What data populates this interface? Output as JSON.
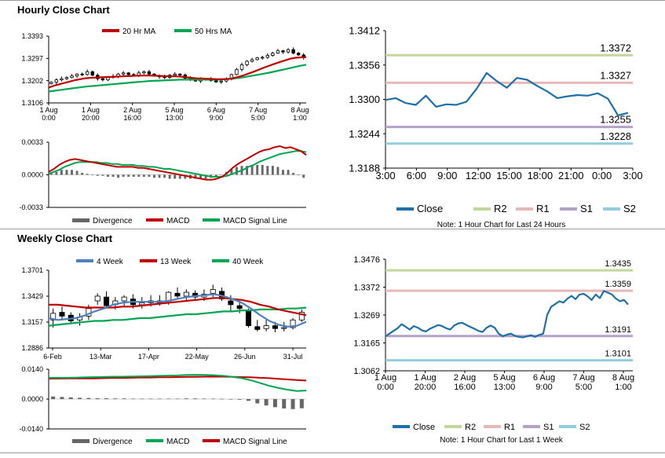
{
  "sections": {
    "hourly_title": "Hourly Close Chart",
    "weekly_title": "Weekly Close Chart"
  },
  "colors": {
    "ma20": "#c00000",
    "ma50": "#00a651",
    "divergence": "#666666",
    "macd": "#c00000",
    "signal": "#00a651",
    "close": "#1f6fa8",
    "r2": "#c3d69b",
    "r1": "#e6b9b8",
    "s1": "#b3a2c7",
    "s2": "#93cddd",
    "week4": "#4f81bd",
    "week13": "#c00000",
    "week40": "#00a651",
    "candle": "#000000",
    "axis": "#000000"
  },
  "chart_data": [
    {
      "id": "hourly_candles",
      "type": "candlestick",
      "legend": [
        "20 Hr MA",
        "50 Hrs MA"
      ],
      "y_ticks": [
        "1.3393",
        "1.3297",
        "1.3202",
        "1.3106"
      ],
      "ylim": [
        1.3106,
        1.3393
      ],
      "x_ticks": [
        [
          "1 Aug",
          "0:00"
        ],
        [
          "1 Aug",
          "20:00"
        ],
        [
          "2 Aug",
          "16:00"
        ],
        [
          "5 Aug",
          "13:00"
        ],
        [
          "6 Aug",
          "9:00"
        ],
        [
          "7 Aug",
          "5:00"
        ],
        [
          "8 Aug",
          "1:00"
        ]
      ],
      "close": [
        1.3195,
        1.3205,
        1.321,
        1.3215,
        1.3222,
        1.323,
        1.3228,
        1.324,
        1.3225,
        1.321,
        1.3205,
        1.3215,
        1.322,
        1.323,
        1.3235,
        1.3228,
        1.3225,
        1.3235,
        1.324,
        1.323,
        1.3222,
        1.3218,
        1.3215,
        1.3225,
        1.323,
        1.3226,
        1.3212,
        1.3205,
        1.32,
        1.3208,
        1.321,
        1.3202,
        1.3196,
        1.32,
        1.3208,
        1.3228,
        1.325,
        1.327,
        1.3285,
        1.3292,
        1.33,
        1.3302,
        1.331,
        1.332,
        1.333,
        1.3325,
        1.3335,
        1.332,
        1.3312,
        1.33
      ],
      "ma20": [
        1.3172,
        1.318,
        1.3186,
        1.3192,
        1.3198,
        1.3204,
        1.3208,
        1.3212,
        1.3214,
        1.3215,
        1.3216,
        1.3217,
        1.3218,
        1.3219,
        1.322,
        1.3221,
        1.3222,
        1.3223,
        1.3224,
        1.3224,
        1.3223,
        1.3222,
        1.3221,
        1.322,
        1.322,
        1.3219,
        1.3217,
        1.3214,
        1.3212,
        1.3211,
        1.321,
        1.3209,
        1.3208,
        1.3208,
        1.3209,
        1.3212,
        1.3217,
        1.3224,
        1.3232,
        1.324,
        1.3249,
        1.3258,
        1.3266,
        1.3274,
        1.3282,
        1.3289,
        1.3296,
        1.33,
        1.3302,
        1.3303
      ],
      "ma50": [
        1.3155,
        1.3158,
        1.3161,
        1.3164,
        1.3167,
        1.317,
        1.3173,
        1.3176,
        1.3178,
        1.318,
        1.3182,
        1.3184,
        1.3186,
        1.3188,
        1.319,
        1.3192,
        1.3194,
        1.3196,
        1.3198,
        1.32,
        1.3201,
        1.3202,
        1.3203,
        1.3204,
        1.3205,
        1.3206,
        1.3206,
        1.3206,
        1.3206,
        1.3206,
        1.3206,
        1.3206,
        1.3206,
        1.3207,
        1.3208,
        1.321,
        1.3213,
        1.3216,
        1.322,
        1.3224,
        1.3228,
        1.3232,
        1.3236,
        1.3241,
        1.3246,
        1.3251,
        1.3256,
        1.3261,
        1.3266,
        1.327
      ]
    },
    {
      "id": "hourly_macd",
      "type": "line+bar",
      "legend": [
        "Divergence",
        "MACD",
        "MACD Signal Line"
      ],
      "y_ticks": [
        "0.0033",
        "0.0000",
        "-0.0033"
      ],
      "ylim": [
        -0.0033,
        0.0033
      ],
      "macd": [
        0.0003,
        0.0006,
        0.001,
        0.0013,
        0.0015,
        0.0016,
        0.0015,
        0.0014,
        0.0013,
        0.0012,
        0.0011,
        0.001,
        0.0009,
        0.0008,
        0.0008,
        0.0008,
        0.0008,
        0.0007,
        0.0007,
        0.0006,
        0.0005,
        0.0004,
        0.0003,
        0.0002,
        0.0001,
        0.0,
        -0.0001,
        -0.0002,
        -0.0003,
        -0.0004,
        -0.0005,
        -0.0005,
        -0.0004,
        -0.0002,
        0.0002,
        0.0007,
        0.0011,
        0.0014,
        0.0017,
        0.002,
        0.0023,
        0.0025,
        0.0026,
        0.0028,
        0.0029,
        0.0027,
        0.0028,
        0.0026,
        0.0024,
        0.002
      ],
      "signal": [
        0.0001,
        0.0003,
        0.0005,
        0.0008,
        0.001,
        0.0012,
        0.0013,
        0.0013,
        0.0013,
        0.0013,
        0.0012,
        0.0012,
        0.0011,
        0.0011,
        0.001,
        0.001,
        0.001,
        0.0009,
        0.0009,
        0.0008,
        0.0008,
        0.0007,
        0.0006,
        0.0006,
        0.0005,
        0.0004,
        0.0003,
        0.0002,
        0.0001,
        0.0,
        -0.0001,
        -0.0002,
        -0.0002,
        -0.0002,
        -0.0001,
        0.0001,
        0.0003,
        0.0005,
        0.0008,
        0.001,
        0.0013,
        0.0015,
        0.0017,
        0.0019,
        0.0021,
        0.0022,
        0.0023,
        0.0024,
        0.0024,
        0.0023
      ],
      "divergence": [
        0.0002,
        0.0003,
        0.0005,
        0.0005,
        0.0005,
        0.0004,
        0.0002,
        0.0001,
        0.0,
        -0.0001,
        -0.0001,
        -0.0002,
        -0.0002,
        -0.0003,
        -0.0002,
        -0.0002,
        -0.0002,
        -0.0002,
        -0.0002,
        -0.0002,
        -0.0003,
        -0.0003,
        -0.0003,
        -0.0004,
        -0.0004,
        -0.0004,
        -0.0004,
        -0.0004,
        -0.0004,
        -0.0004,
        -0.0004,
        -0.0003,
        -0.0002,
        0.0,
        0.0003,
        0.0006,
        0.0008,
        0.0009,
        0.0009,
        0.001,
        0.001,
        0.001,
        0.0009,
        0.0009,
        0.0008,
        0.0005,
        0.0005,
        0.0002,
        0.0,
        -0.0003
      ]
    },
    {
      "id": "hourly_close_24h",
      "type": "line",
      "y_ticks": [
        "1.3412",
        "1.3356",
        "1.3300",
        "1.3244",
        "1.3188"
      ],
      "ylim": [
        1.3188,
        1.3412
      ],
      "x_ticks": [
        "3:00",
        "6:00",
        "9:00",
        "12:00",
        "15:00",
        "18:00",
        "21:00",
        "0:00",
        "3:00"
      ],
      "close": [
        1.3299,
        1.3302,
        1.3294,
        1.3291,
        1.3306,
        1.3288,
        1.3292,
        1.3291,
        1.3296,
        1.3317,
        1.3343,
        1.333,
        1.3319,
        1.3335,
        1.3332,
        1.3322,
        1.3313,
        1.3302,
        1.3305,
        1.3307,
        1.3306,
        1.331,
        1.3301,
        1.3274,
        1.3278
      ],
      "levels": [
        {
          "name": "R2",
          "value": 1.3372,
          "label": "1.3372"
        },
        {
          "name": "R1",
          "value": 1.3327,
          "label": "1.3327"
        },
        {
          "name": "S1",
          "value": 1.3255,
          "label": "1.3255"
        },
        {
          "name": "S2",
          "value": 1.3228,
          "label": "1.3228"
        }
      ],
      "legend": [
        "Close",
        "R2",
        "R1",
        "S1",
        "S2"
      ],
      "note": "Note: 1 Hour Chart for Last 24 Hours"
    },
    {
      "id": "weekly_candles",
      "type": "candlestick",
      "legend": [
        "4 Week",
        "13 Week",
        "40 Week"
      ],
      "y_ticks": [
        "1.3701",
        "1.3429",
        "1.3157",
        "1.2886"
      ],
      "ylim": [
        1.2886,
        1.3701
      ],
      "x_ticks": [
        "6-Feb",
        "13-Mar",
        "17-Apr",
        "22-May",
        "26-Jun",
        "31-Jul"
      ],
      "candles": [
        {
          "o": 1.318,
          "h": 1.33,
          "l": 1.31,
          "c": 1.325
        },
        {
          "o": 1.326,
          "h": 1.332,
          "l": 1.318,
          "c": 1.322
        },
        {
          "o": 1.323,
          "h": 1.326,
          "l": 1.314,
          "c": 1.317
        },
        {
          "o": 1.318,
          "h": 1.325,
          "l": 1.312,
          "c": 1.321
        },
        {
          "o": 1.322,
          "h": 1.334,
          "l": 1.318,
          "c": 1.33
        },
        {
          "o": 1.338,
          "h": 1.346,
          "l": 1.334,
          "c": 1.343
        },
        {
          "o": 1.342,
          "h": 1.348,
          "l": 1.33,
          "c": 1.333
        },
        {
          "o": 1.334,
          "h": 1.342,
          "l": 1.329,
          "c": 1.338
        },
        {
          "o": 1.338,
          "h": 1.344,
          "l": 1.333,
          "c": 1.342
        },
        {
          "o": 1.34,
          "h": 1.345,
          "l": 1.33,
          "c": 1.334
        },
        {
          "o": 1.334,
          "h": 1.342,
          "l": 1.33,
          "c": 1.336
        },
        {
          "o": 1.336,
          "h": 1.344,
          "l": 1.332,
          "c": 1.338
        },
        {
          "o": 1.338,
          "h": 1.344,
          "l": 1.333,
          "c": 1.336
        },
        {
          "o": 1.336,
          "h": 1.348,
          "l": 1.334,
          "c": 1.347
        },
        {
          "o": 1.346,
          "h": 1.352,
          "l": 1.34,
          "c": 1.343
        },
        {
          "o": 1.343,
          "h": 1.35,
          "l": 1.339,
          "c": 1.347
        },
        {
          "o": 1.346,
          "h": 1.349,
          "l": 1.34,
          "c": 1.342
        },
        {
          "o": 1.342,
          "h": 1.35,
          "l": 1.338,
          "c": 1.345
        },
        {
          "o": 1.346,
          "h": 1.355,
          "l": 1.342,
          "c": 1.35
        },
        {
          "o": 1.348,
          "h": 1.352,
          "l": 1.338,
          "c": 1.34
        },
        {
          "o": 1.338,
          "h": 1.344,
          "l": 1.326,
          "c": 1.334
        },
        {
          "o": 1.333,
          "h": 1.338,
          "l": 1.325,
          "c": 1.33
        },
        {
          "o": 1.328,
          "h": 1.33,
          "l": 1.31,
          "c": 1.312
        },
        {
          "o": 1.311,
          "h": 1.318,
          "l": 1.306,
          "c": 1.308
        },
        {
          "o": 1.309,
          "h": 1.319,
          "l": 1.306,
          "c": 1.312
        },
        {
          "o": 1.312,
          "h": 1.316,
          "l": 1.305,
          "c": 1.309
        },
        {
          "o": 1.309,
          "h": 1.316,
          "l": 1.306,
          "c": 1.31
        },
        {
          "o": 1.31,
          "h": 1.32,
          "l": 1.308,
          "c": 1.318
        },
        {
          "o": 1.318,
          "h": 1.329,
          "l": 1.316,
          "c": 1.326
        }
      ],
      "week4": [
        1.32,
        1.318,
        1.319,
        1.32,
        1.323,
        1.327,
        1.33,
        1.334,
        1.336,
        1.337,
        1.337,
        1.337,
        1.337,
        1.338,
        1.34,
        1.342,
        1.343,
        1.344,
        1.345,
        1.343,
        1.34,
        1.336,
        1.33,
        1.323,
        1.317,
        1.313,
        1.311,
        1.312,
        1.316
      ],
      "week13": [
        1.334,
        1.334,
        1.333,
        1.332,
        1.331,
        1.331,
        1.331,
        1.331,
        1.332,
        1.332,
        1.333,
        1.334,
        1.335,
        1.336,
        1.337,
        1.338,
        1.339,
        1.34,
        1.341,
        1.341,
        1.34,
        1.339,
        1.337,
        1.334,
        1.332,
        1.329,
        1.327,
        1.325,
        1.323
      ],
      "week40": [
        1.312,
        1.313,
        1.314,
        1.315,
        1.316,
        1.317,
        1.317,
        1.318,
        1.318,
        1.319,
        1.32,
        1.32,
        1.321,
        1.322,
        1.323,
        1.324,
        1.324,
        1.325,
        1.326,
        1.327,
        1.327,
        1.328,
        1.328,
        1.329,
        1.329,
        1.329,
        1.33,
        1.33,
        1.331
      ]
    },
    {
      "id": "weekly_macd",
      "type": "line+bar",
      "legend": [
        "Divergence",
        "MACD",
        "MACD Signal Line"
      ],
      "y_ticks": [
        "0.0140",
        "0.0000",
        "-0.0140"
      ],
      "ylim": [
        -0.014,
        0.014
      ],
      "macd": [
        0.01,
        0.01,
        0.01,
        0.0101,
        0.0102,
        0.0103,
        0.0104,
        0.0105,
        0.0105,
        0.0106,
        0.0107,
        0.0108,
        0.0109,
        0.011,
        0.0111,
        0.0113,
        0.0114,
        0.0113,
        0.0112,
        0.0109,
        0.0104,
        0.0098,
        0.0088,
        0.0075,
        0.0062,
        0.0052,
        0.0044,
        0.0038,
        0.004
      ],
      "signal": [
        0.0096,
        0.0096,
        0.0097,
        0.0097,
        0.0097,
        0.0097,
        0.0098,
        0.0099,
        0.0099,
        0.01,
        0.0101,
        0.0101,
        0.0102,
        0.0102,
        0.0103,
        0.0104,
        0.0104,
        0.0105,
        0.0105,
        0.0105,
        0.0104,
        0.0103,
        0.0102,
        0.01,
        0.0098,
        0.0095,
        0.0092,
        0.0089,
        0.0087
      ],
      "divergence": [
        0.0012,
        0.001,
        0.0008,
        0.0006,
        0.0005,
        0.0004,
        0.0004,
        0.0003,
        0.0003,
        0.0002,
        0.0002,
        0.0002,
        0.0002,
        0.0002,
        0.0002,
        0.0003,
        0.0003,
        0.0002,
        0.0002,
        0.0001,
        0.0,
        -0.0003,
        -0.0008,
        -0.002,
        -0.003,
        -0.0038,
        -0.0044,
        -0.0047,
        -0.0043
      ]
    },
    {
      "id": "hourly_close_week",
      "type": "line",
      "y_ticks": [
        "1.3476",
        "1.3372",
        "1.3269",
        "1.3165",
        "1.3062"
      ],
      "ylim": [
        1.3062,
        1.3476
      ],
      "x_ticks": [
        [
          "1 Aug",
          "0:00"
        ],
        [
          "1 Aug",
          "20:00"
        ],
        [
          "2 Aug",
          "16:00"
        ],
        [
          "5 Aug",
          "13:00"
        ],
        [
          "6 Aug",
          "9:00"
        ],
        [
          "7 Aug",
          "5:00"
        ],
        [
          "8 Aug",
          "1:00"
        ]
      ],
      "close": [
        1.319,
        1.32,
        1.321,
        1.322,
        1.3235,
        1.3225,
        1.3215,
        1.3228,
        1.3222,
        1.3212,
        1.3208,
        1.3218,
        1.3225,
        1.3232,
        1.3228,
        1.322,
        1.3215,
        1.323,
        1.3238,
        1.324,
        1.3232,
        1.3225,
        1.3218,
        1.321,
        1.3206,
        1.3222,
        1.323,
        1.3222,
        1.32,
        1.319,
        1.3196,
        1.32,
        1.3192,
        1.3188,
        1.3186,
        1.319,
        1.3194,
        1.3188,
        1.3195,
        1.32,
        1.327,
        1.33,
        1.331,
        1.332,
        1.3315,
        1.333,
        1.334,
        1.3328,
        1.3345,
        1.3348,
        1.3338,
        1.3325,
        1.3345,
        1.3332,
        1.3358,
        1.3352,
        1.3345,
        1.333,
        1.332,
        1.3325,
        1.3308
      ],
      "levels": [
        {
          "name": "R2",
          "value": 1.3435,
          "label": "1.3435"
        },
        {
          "name": "R1",
          "value": 1.3359,
          "label": "1.3359"
        },
        {
          "name": "S1",
          "value": 1.3191,
          "label": "1.3191"
        },
        {
          "name": "S2",
          "value": 1.3101,
          "label": "1.3101"
        }
      ],
      "legend": [
        "Close",
        "R2",
        "R1",
        "S1",
        "S2"
      ],
      "note": "Note: 1 Hour Chart for Last 1 Week"
    }
  ]
}
